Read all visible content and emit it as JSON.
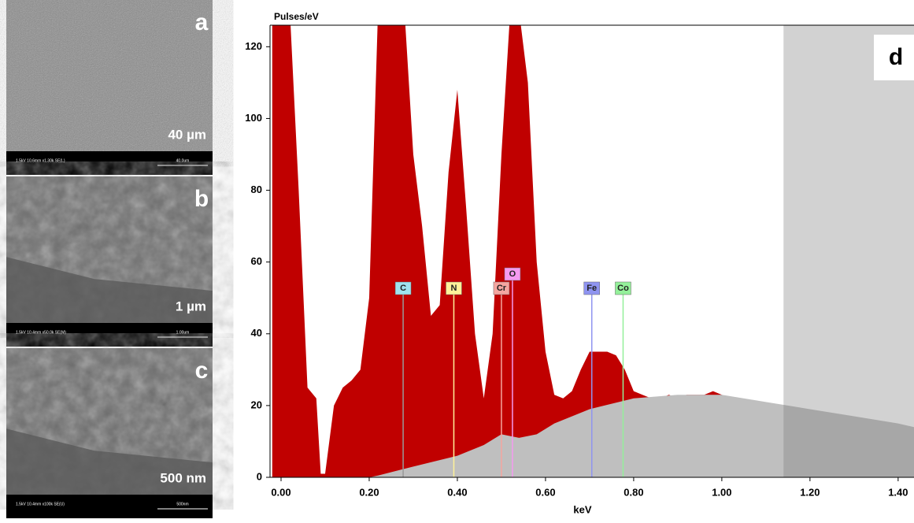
{
  "panels": [
    {
      "letter": "a",
      "scale": "40 µm",
      "info": "1.5kV 10.6mm x1.30k SE(L)",
      "bar": "40.0um"
    },
    {
      "letter": "b",
      "scale": "1 µm",
      "info": "1.5kV 10.4mm x50.0k SE(M)",
      "bar": "1.00um"
    },
    {
      "letter": "c",
      "scale": "500 nm",
      "info": "1.5kV 10.4mm x100k SE(U)",
      "bar": "500nm"
    }
  ],
  "chart_data": {
    "type": "area",
    "panel_label": "d",
    "y_label": "Pulses/eV",
    "x_label": "keV",
    "xlim": [
      -0.025,
      1.436
    ],
    "ylim": [
      0,
      126
    ],
    "xticks": [
      {
        "value": 0,
        "label": "0.00"
      },
      {
        "value": 0.2,
        "label": "0.20"
      },
      {
        "value": 0.4,
        "label": "0.40"
      },
      {
        "value": 0.6,
        "label": "0.60"
      },
      {
        "value": 0.8,
        "label": "0.80"
      },
      {
        "value": 1.0,
        "label": "1.00"
      },
      {
        "value": 1.2,
        "label": "1.20"
      },
      {
        "value": 1.4,
        "label": "1.40"
      }
    ],
    "yticks": [
      0,
      20,
      40,
      60,
      80,
      100,
      120
    ],
    "shaded_from": 1.14,
    "series": [
      {
        "color": "#c00000",
        "x": [
          -0.02,
          0,
          0.02,
          0.04,
          0.06,
          0.08,
          0.09,
          0.1,
          0.12,
          0.14,
          0.16,
          0.18,
          0.2,
          0.22,
          0.24,
          0.26,
          0.28,
          0.3,
          0.32,
          0.34,
          0.36,
          0.38,
          0.4,
          0.42,
          0.44,
          0.46,
          0.48,
          0.5,
          0.52,
          0.54,
          0.56,
          0.58,
          0.6,
          0.62,
          0.64,
          0.66,
          0.68,
          0.7,
          0.72,
          0.74,
          0.76,
          0.78,
          0.8,
          0.82,
          0.84,
          0.86,
          0.88,
          0.9,
          0.92,
          0.94,
          0.96,
          0.98,
          1,
          1.02,
          1.04,
          1.06,
          1.08,
          1.1,
          1.12,
          1.14,
          1.16,
          1.18,
          1.2,
          1.22,
          1.24,
          1.26,
          1.28,
          1.3,
          1.32,
          1.34,
          1.36,
          1.38,
          1.4,
          1.42,
          1.44
        ],
        "values": [
          130,
          130,
          130,
          80,
          25,
          22,
          1,
          1,
          20,
          25,
          27,
          30,
          50,
          130,
          130,
          130,
          130,
          90,
          70,
          45,
          48,
          85,
          108,
          75,
          40,
          22,
          40,
          90,
          130,
          130,
          110,
          60,
          35,
          23,
          22,
          24,
          30,
          35,
          35,
          35,
          34,
          30,
          24,
          23,
          22,
          22,
          23,
          22,
          23,
          23,
          23,
          24,
          23,
          22,
          22,
          21,
          21,
          20,
          20,
          19,
          19,
          18,
          18,
          17,
          17,
          16,
          16,
          15,
          15,
          14,
          14,
          13,
          13,
          13,
          12
        ]
      },
      {
        "color": "#bfbfbf",
        "x": [
          -0.025,
          0.2,
          0.22,
          0.3,
          0.4,
          0.46,
          0.5,
          0.54,
          0.58,
          0.62,
          0.7,
          0.8,
          0.9,
          1,
          1.1,
          1.2,
          1.3,
          1.4,
          1.436
        ],
        "values": [
          0,
          0,
          0.5,
          3,
          6,
          9,
          12,
          11,
          12,
          15,
          19,
          22,
          23,
          23,
          21,
          19,
          17,
          15,
          14
        ]
      }
    ],
    "markers": [
      {
        "label": "C",
        "x": 0.277,
        "color": "#9fe3ef"
      },
      {
        "label": "N",
        "x": 0.392,
        "color": "#fff29a"
      },
      {
        "label": "Cr",
        "x": 0.5,
        "color": "#f4a6a0"
      },
      {
        "label": "O",
        "x": 0.525,
        "color": "#f59af0"
      },
      {
        "label": "Fe",
        "x": 0.705,
        "color": "#8f94f0"
      },
      {
        "label": "Co",
        "x": 0.776,
        "color": "#94f09a"
      }
    ]
  }
}
